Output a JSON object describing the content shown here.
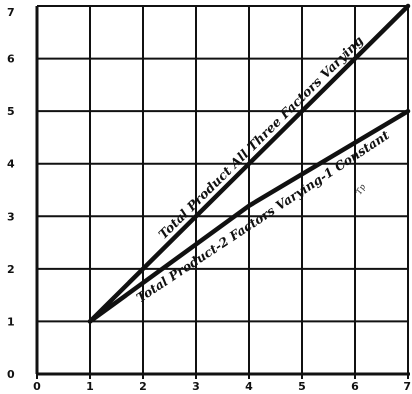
{
  "chart_data": {
    "type": "line",
    "title": "",
    "xlabel": "",
    "ylabel": "",
    "xlim": [
      0,
      7
    ],
    "ylim": [
      0,
      7
    ],
    "x_ticks": [
      "0",
      "1",
      "2",
      "3",
      "4",
      "5",
      "6",
      "7"
    ],
    "y_ticks": [
      "0",
      "1",
      "2",
      "3",
      "4",
      "5",
      "6",
      "7"
    ],
    "grid": true,
    "series": [
      {
        "name": "Total Product All Three Factors Varying",
        "x": [
          1,
          7
        ],
        "y": [
          1,
          7
        ]
      },
      {
        "name": "Total Product-2 Factors Varying-1 Constant",
        "x": [
          1,
          4,
          7
        ],
        "y": [
          1,
          3.2,
          5
        ]
      }
    ],
    "annotations": [
      {
        "text": "Tp",
        "x": 6.1,
        "y": 3.4
      }
    ],
    "colors": {
      "line": "#111111",
      "grid": "#111111",
      "background": "#ffffff"
    }
  }
}
